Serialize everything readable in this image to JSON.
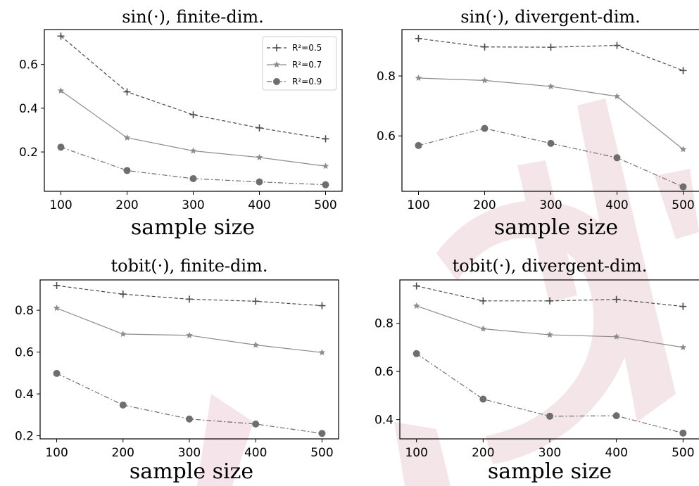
{
  "chart_data": [
    {
      "type": "line",
      "title": "sin(·),  finite-dim.",
      "xlabel": "sample size",
      "ylabel": "",
      "x": [
        100,
        200,
        300,
        400,
        500
      ],
      "xlim": [
        75,
        525
      ],
      "ylim": [
        0.02,
        0.76
      ],
      "xticks": [
        100,
        200,
        300,
        400,
        500
      ],
      "yticks": [
        0.2,
        0.4,
        0.6
      ],
      "legend_position": "top-right",
      "series": [
        {
          "name": "R²=0.5",
          "values": [
            0.73,
            0.475,
            0.37,
            0.31,
            0.26
          ]
        },
        {
          "name": "R²=0.7",
          "values": [
            0.48,
            0.265,
            0.205,
            0.175,
            0.135
          ]
        },
        {
          "name": "R²=0.9",
          "values": [
            0.222,
            0.115,
            0.078,
            0.063,
            0.05
          ]
        }
      ]
    },
    {
      "type": "line",
      "title": "sin(·),  divergent-dim.",
      "xlabel": "sample size",
      "ylabel": "",
      "x": [
        100,
        200,
        300,
        400,
        500
      ],
      "xlim": [
        75,
        525
      ],
      "ylim": [
        0.415,
        0.955
      ],
      "xticks": [
        100,
        200,
        300,
        400,
        500
      ],
      "yticks": [
        0.6,
        0.8
      ],
      "legend_position": "none",
      "series": [
        {
          "values": [
            0.925,
            0.897,
            0.896,
            0.902,
            0.818
          ]
        },
        {
          "values": [
            0.793,
            0.785,
            0.765,
            0.732,
            0.555
          ]
        },
        {
          "values": [
            0.568,
            0.625,
            0.575,
            0.527,
            0.43
          ]
        }
      ]
    },
    {
      "type": "line",
      "title": "tobit(·),  finite-dim.",
      "xlabel": "sample size",
      "ylabel": "",
      "x": [
        100,
        200,
        300,
        400,
        500
      ],
      "xlim": [
        75,
        525
      ],
      "ylim": [
        0.185,
        0.945
      ],
      "xticks": [
        100,
        200,
        300,
        400,
        500
      ],
      "yticks": [
        0.2,
        0.4,
        0.6,
        0.8
      ],
      "legend_position": "none",
      "series": [
        {
          "values": [
            0.918,
            0.877,
            0.853,
            0.843,
            0.822
          ]
        },
        {
          "values": [
            0.81,
            0.686,
            0.68,
            0.634,
            0.598
          ]
        },
        {
          "values": [
            0.498,
            0.347,
            0.28,
            0.256,
            0.211
          ]
        }
      ]
    },
    {
      "type": "line",
      "title": "tobit(·), divergent-dim.",
      "xlabel": "sample size",
      "ylabel": "",
      "x": [
        100,
        200,
        300,
        400,
        500
      ],
      "xlim": [
        75,
        525
      ],
      "ylim": [
        0.32,
        0.98
      ],
      "xticks": [
        100,
        200,
        300,
        400,
        500
      ],
      "yticks": [
        0.4,
        0.6,
        0.8
      ],
      "legend_position": "none",
      "series": [
        {
          "values": [
            0.955,
            0.893,
            0.893,
            0.899,
            0.87
          ]
        },
        {
          "values": [
            0.872,
            0.777,
            0.752,
            0.744,
            0.7
          ]
        },
        {
          "values": [
            0.674,
            0.485,
            0.414,
            0.416,
            0.344
          ]
        }
      ]
    }
  ],
  "styles": {
    "series_colors": [
      "#4a4a4a",
      "#8c8c8c",
      "#6e6e6e"
    ],
    "markers": [
      "plus",
      "star",
      "circle"
    ],
    "watermark_color": "#e8c8d0"
  }
}
